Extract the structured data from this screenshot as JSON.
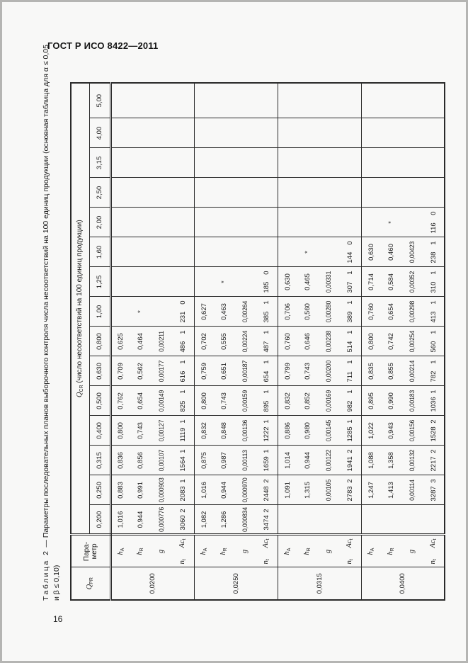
{
  "header": {
    "title": "ГОСТ Р ИСО 8422—2011"
  },
  "footer": {
    "page_number": "16"
  },
  "caption": {
    "label": "Таблица 2",
    "rest": " — Параметры последовательных планов выборочного контроля числа несоответствий на 100 единиц продукции (основная таблица для α ≤ 0,05",
    "line2": "и β ≤ 0,10)"
  },
  "table": {
    "corner_qpr": {
      "base": "Q",
      "sub": "PR"
    },
    "param_header_lines": [
      "Пара-",
      "метр"
    ],
    "qcr_title": {
      "base": "Q",
      "sub": "CR",
      "rest": " (число несоответствий на 100 единиц продукции)"
    },
    "qcr_columns": [
      "0,200",
      "0,250",
      "0,315",
      "0,400",
      "0,500",
      "0,630",
      "0,800",
      "1,00",
      "1,25",
      "1,60",
      "2,00",
      "2,50",
      "3,15",
      "4,00",
      "5,00"
    ],
    "param_rows": [
      {
        "key": "ha",
        "label": {
          "base": "h",
          "sub": "A"
        }
      },
      {
        "key": "hr",
        "label": {
          "base": "h",
          "sub": "R"
        }
      },
      {
        "key": "g",
        "label": {
          "base": "g",
          "sub": ""
        }
      },
      {
        "key": "nt",
        "label": {
          "base": "n",
          "sub": "t"
        },
        "label2": {
          "base": "Ac",
          "sub": "t"
        }
      }
    ],
    "groups": [
      {
        "qpr": "0,0200",
        "ha": [
          "1,016",
          "0,883",
          "0,836",
          "0,800",
          "0,762",
          "0,709",
          "0,625",
          "",
          "",
          "",
          "",
          "",
          "",
          "",
          ""
        ],
        "hr": [
          "0,944",
          "0,991",
          "0,856",
          "0,743",
          "0,654",
          "0,562",
          "0,464",
          "*",
          "",
          "",
          "",
          "",
          "",
          "",
          ""
        ],
        "g": [
          "0,000776",
          "0,000903",
          "0,00107",
          "0,00127",
          "0,00149",
          "0,00177",
          "0,00211",
          "",
          "",
          "",
          "",
          "",
          "",
          "",
          ""
        ],
        "nt": [
          "3060",
          "2083",
          "1564",
          "1119",
          "825",
          "616",
          "486",
          "231",
          "",
          "",
          "",
          "",
          "",
          "",
          ""
        ],
        "act": [
          "2",
          "1",
          "1",
          "1",
          "1",
          "1",
          "1",
          "0",
          "",
          "",
          "",
          "",
          "",
          "",
          ""
        ]
      },
      {
        "qpr": "0,0250",
        "ha": [
          "1,082",
          "1,016",
          "0,875",
          "0,832",
          "0,800",
          "0,759",
          "0,702",
          "0,627",
          "",
          "",
          "",
          "",
          "",
          "",
          ""
        ],
        "hr": [
          "1,286",
          "0,944",
          "0,987",
          "0,848",
          "0,743",
          "0,651",
          "0,555",
          "0,463",
          "*",
          "",
          "",
          "",
          "",
          "",
          ""
        ],
        "g": [
          "0,000834",
          "0,000970",
          "0,00113",
          "0,00136",
          "0,00159",
          "0,00187",
          "0,00224",
          "0,00264",
          "",
          "",
          "",
          "",
          "",
          "",
          ""
        ],
        "nt": [
          "3474",
          "2448",
          "1659",
          "1222",
          "895",
          "654",
          "487",
          "385",
          "185",
          "",
          "",
          "",
          "",
          "",
          ""
        ],
        "act": [
          "2",
          "2",
          "1",
          "1",
          "1",
          "1",
          "1",
          "1",
          "0",
          "",
          "",
          "",
          "",
          "",
          ""
        ]
      },
      {
        "qpr": "0,0315",
        "ha": [
          "",
          "1,091",
          "1,014",
          "0,886",
          "0,832",
          "0,799",
          "0,760",
          "0,706",
          "0,630",
          "",
          "",
          "",
          "",
          "",
          ""
        ],
        "hr": [
          "",
          "1,315",
          "0,944",
          "0,980",
          "0,852",
          "0,743",
          "0,646",
          "0,560",
          "0,465",
          "*",
          "",
          "",
          "",
          "",
          ""
        ],
        "g": [
          "",
          "0,00105",
          "0,00122",
          "0,00145",
          "0,00169",
          "0,00200",
          "0,00238",
          "0,00280",
          "0,00331",
          "",
          "",
          "",
          "",
          "",
          ""
        ],
        "nt": [
          "",
          "2783",
          "1941",
          "1285",
          "982",
          "711",
          "514",
          "389",
          "307",
          "144",
          "",
          "",
          "",
          "",
          ""
        ],
        "act": [
          "",
          "2",
          "2",
          "1",
          "1",
          "1",
          "1",
          "1",
          "1",
          "0",
          "",
          "",
          "",
          "",
          ""
        ]
      },
      {
        "qpr": "0,0400",
        "ha": [
          "",
          "1,247",
          "1,088",
          "1,022",
          "0,895",
          "0,835",
          "0,800",
          "0,760",
          "0,714",
          "0,630",
          "",
          "",
          "",
          "",
          ""
        ],
        "hr": [
          "",
          "1,413",
          "1,358",
          "0,943",
          "0,990",
          "0,855",
          "0,742",
          "0,654",
          "0,584",
          "0,460",
          "*",
          "",
          "",
          "",
          ""
        ],
        "g": [
          "",
          "0,00114",
          "0,00132",
          "0,00156",
          "0,00183",
          "0,00214",
          "0,00254",
          "0,00298",
          "0,00352",
          "0,00423",
          "",
          "",
          "",
          "",
          ""
        ],
        "nt": [
          "",
          "3287",
          "2217",
          "1528",
          "1036",
          "782",
          "560",
          "413",
          "310",
          "238",
          "116",
          "",
          "",
          "",
          ""
        ],
        "act": [
          "",
          "3",
          "2",
          "2",
          "1",
          "1",
          "1",
          "1",
          "1",
          "1",
          "0",
          "",
          "",
          "",
          ""
        ]
      }
    ]
  }
}
